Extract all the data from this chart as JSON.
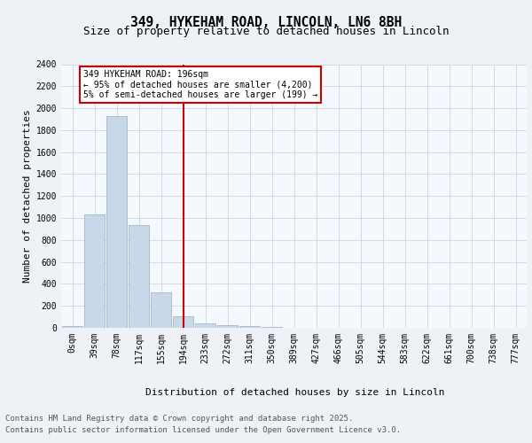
{
  "title1": "349, HYKEHAM ROAD, LINCOLN, LN6 8BH",
  "title2": "Size of property relative to detached houses in Lincoln",
  "xlabel": "Distribution of detached houses by size in Lincoln",
  "ylabel": "Number of detached properties",
  "bar_labels": [
    "0sqm",
    "39sqm",
    "78sqm",
    "117sqm",
    "155sqm",
    "194sqm",
    "233sqm",
    "272sqm",
    "311sqm",
    "350sqm",
    "389sqm",
    "427sqm",
    "466sqm",
    "505sqm",
    "544sqm",
    "583sqm",
    "622sqm",
    "661sqm",
    "700sqm",
    "738sqm",
    "777sqm"
  ],
  "bar_values": [
    15,
    1030,
    1930,
    935,
    320,
    105,
    40,
    25,
    15,
    10,
    0,
    0,
    0,
    0,
    0,
    0,
    0,
    0,
    0,
    0,
    0
  ],
  "bar_color": "#c8d8e8",
  "bar_edgecolor": "#a0b8cc",
  "vline_color": "#cc0000",
  "vline_bin": 5,
  "ylim": [
    0,
    2400
  ],
  "yticks": [
    0,
    200,
    400,
    600,
    800,
    1000,
    1200,
    1400,
    1600,
    1800,
    2000,
    2200,
    2400
  ],
  "annotation_title": "349 HYKEHAM ROAD: 196sqm",
  "annotation_line1": "← 95% of detached houses are smaller (4,200)",
  "annotation_line2": "5% of semi-detached houses are larger (199) →",
  "annotation_box_color": "#cc0000",
  "footer1": "Contains HM Land Registry data © Crown copyright and database right 2025.",
  "footer2": "Contains public sector information licensed under the Open Government Licence v3.0.",
  "bg_color": "#eef2f6",
  "plot_bg_color": "#f5f8fc",
  "grid_color": "#ccd6e0",
  "title1_fontsize": 10.5,
  "title2_fontsize": 9,
  "axis_label_fontsize": 8,
  "tick_fontsize": 7,
  "footer_fontsize": 6.5,
  "ann_fontsize": 7
}
